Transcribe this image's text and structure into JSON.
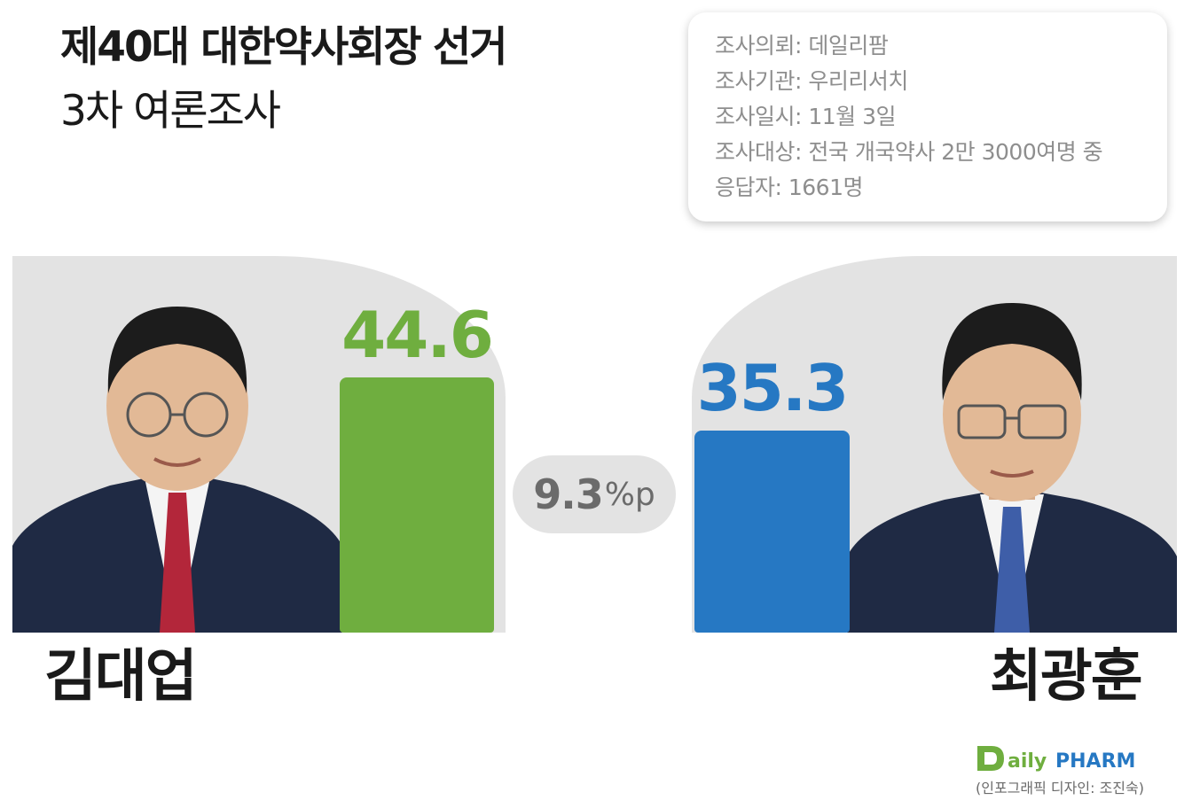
{
  "title": "제40대 대한약사회장 선거",
  "subtitle": "3차 여론조사",
  "survey_info": [
    "조사의뢰: 데일리팜",
    "조사기관: 우리리서치",
    "조사일시: 11월 3일",
    "조사대상: 전국 개국약사 2만 3000여명 중",
    "응답자: 1661명"
  ],
  "colors": {
    "green": "#6fae3f",
    "blue": "#2678c3",
    "panel": "#e3e3e3",
    "diff_text": "#6b6b6b"
  },
  "chart_data": {
    "type": "bar",
    "categories": [
      "김대업",
      "최광훈"
    ],
    "values": [
      44.6,
      35.3
    ],
    "value_labels": [
      "44.6",
      "35.3"
    ],
    "ylim": [
      0,
      50
    ],
    "grid": false,
    "difference": {
      "value": "9.3",
      "unit": "%p"
    }
  },
  "candidates": [
    {
      "name": "김대업",
      "value_label": "44.6"
    },
    {
      "name": "최광훈",
      "value_label": "35.3"
    }
  ],
  "logo": {
    "text": "DailyPHARM",
    "icon": "dailypharm-logo"
  },
  "credit": "(인포그래픽 디자인: 조진숙)"
}
